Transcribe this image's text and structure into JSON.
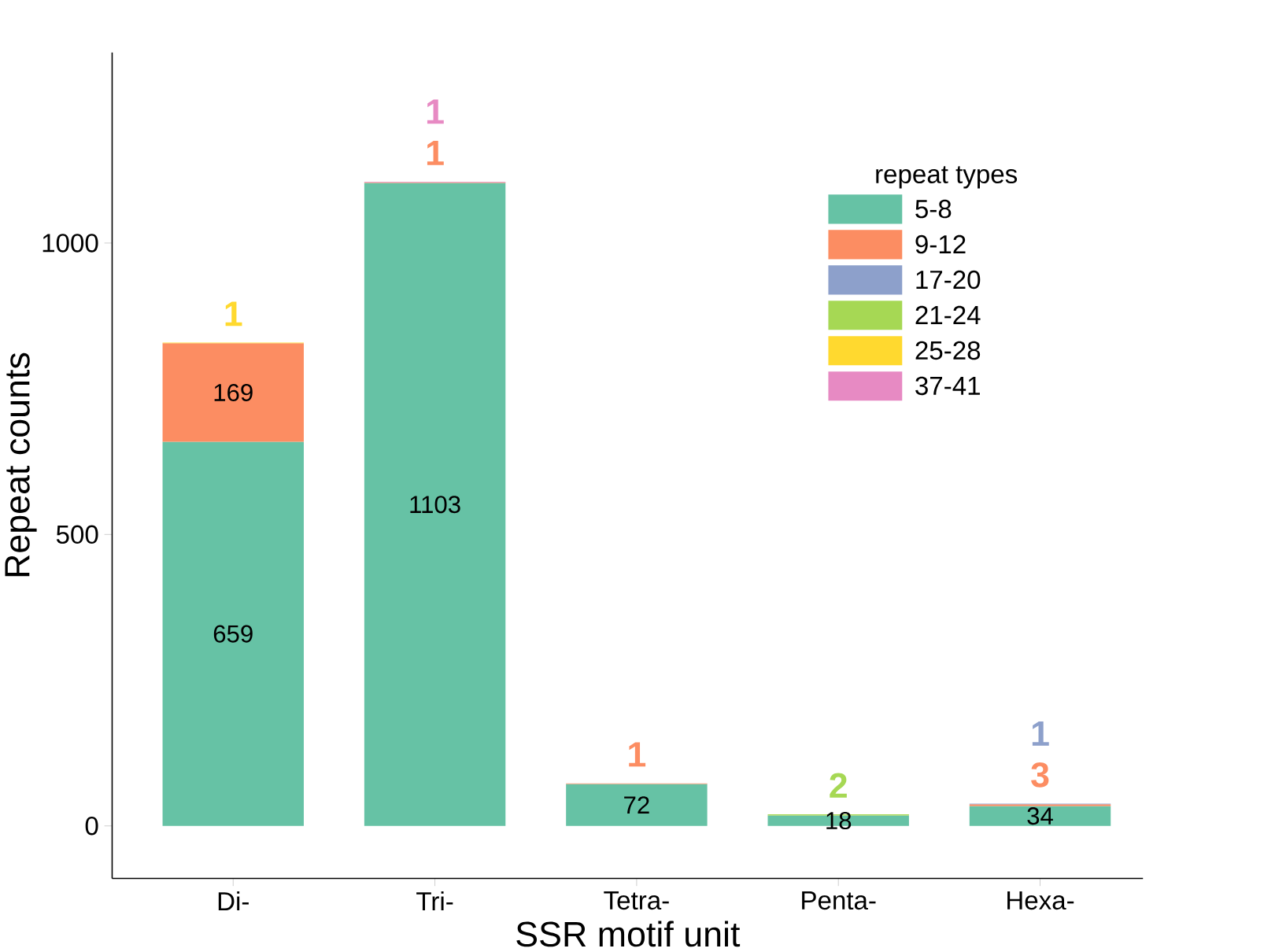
{
  "chart_data": {
    "type": "bar",
    "stacked": true,
    "xlabel": "SSR motif unit",
    "ylabel": "Repeat counts",
    "legend_title": "repeat types",
    "legend": "top right",
    "data_labels": true,
    "categories": [
      "Di-",
      "Tri-",
      "Tetra-",
      "Penta-",
      "Hexa-"
    ],
    "ylim": [
      -90,
      1327
    ],
    "yticks": [
      0,
      500,
      1000
    ],
    "series": [
      {
        "name": "5-8",
        "color": "#66c2a5",
        "values": [
          659,
          1103,
          72,
          18,
          34
        ]
      },
      {
        "name": "9-12",
        "color": "#fc8d62",
        "values": [
          169,
          1,
          1,
          null,
          3
        ]
      },
      {
        "name": "17-20",
        "color": "#8da0cb",
        "values": [
          null,
          null,
          null,
          null,
          1
        ]
      },
      {
        "name": "21-24",
        "color": "#a6d854",
        "values": [
          null,
          null,
          null,
          2,
          null
        ]
      },
      {
        "name": "25-28",
        "color": "#ffd92f",
        "values": [
          1,
          null,
          null,
          null,
          null
        ]
      },
      {
        "name": "37-41",
        "color": "#e78ac3",
        "values": [
          null,
          1,
          null,
          null,
          null
        ]
      }
    ]
  }
}
